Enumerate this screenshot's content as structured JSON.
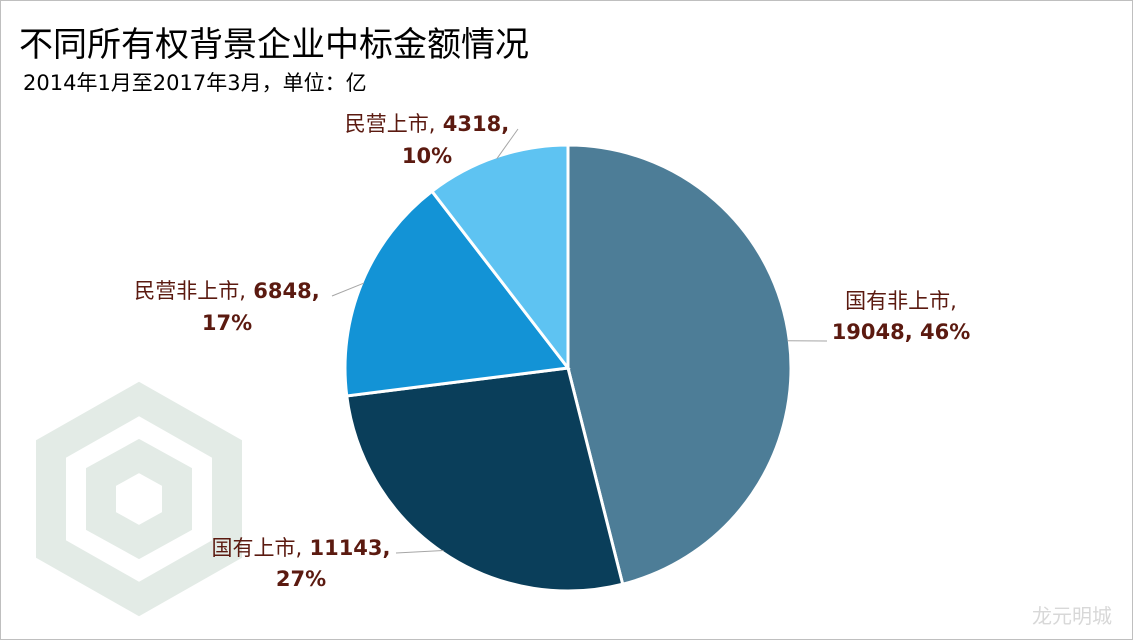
{
  "chart_data": {
    "type": "pie",
    "title": "不同所有权背景企业中标金额情况",
    "subtitle": "2014年1月至2017年3月，单位：亿",
    "slices": [
      {
        "label": "国有非上市",
        "value": 19048,
        "percent": "46%",
        "color": "#4d7d97"
      },
      {
        "label": "国有上市",
        "value": 11143,
        "percent": "27%",
        "color": "#0a3e5a"
      },
      {
        "label": "民营非上市",
        "value": 6848,
        "percent": "17%",
        "color": "#1393d6"
      },
      {
        "label": "民营上市",
        "value": 4318,
        "percent": "10%",
        "color": "#5ec3f2"
      }
    ],
    "label_color": "#5b1a10",
    "start_angle": "12-o'clock",
    "direction": "clockwise"
  },
  "watermark": {
    "text": "龙元明城"
  }
}
